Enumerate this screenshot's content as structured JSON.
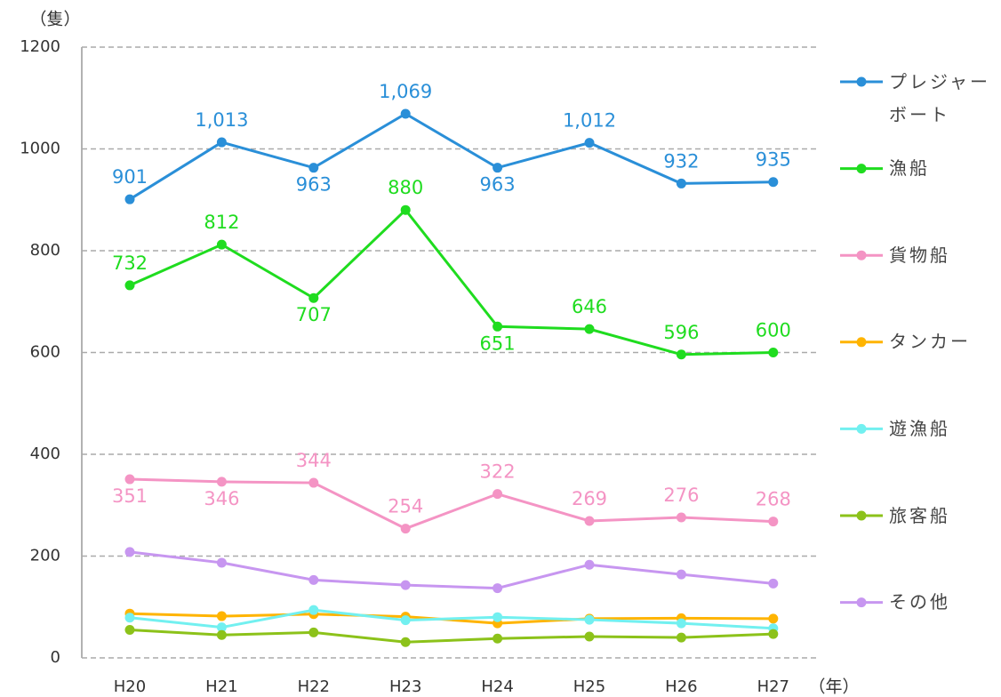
{
  "chart_data": {
    "type": "line",
    "y_unit": "（隻）",
    "x_unit": "（年）",
    "categories": [
      "H20",
      "H21",
      "H22",
      "H23",
      "H24",
      "H25",
      "H26",
      "H27"
    ],
    "ylim": [
      0,
      1200
    ],
    "yticks": [
      0,
      200,
      400,
      600,
      800,
      1000,
      1200
    ],
    "grid": true,
    "legend": "right",
    "series": [
      {
        "name": "プレジャーボート",
        "color": "#2a8fd8",
        "data_labels": true,
        "values": [
          901,
          1013,
          963,
          1069,
          963,
          1012,
          932,
          935
        ],
        "value_labels": [
          "901",
          "1,013",
          "963",
          "1,069",
          "963",
          "1,012",
          "932",
          "935"
        ]
      },
      {
        "name": "漁船",
        "color": "#1fdc1f",
        "data_labels": true,
        "values": [
          732,
          812,
          707,
          880,
          651,
          646,
          596,
          600
        ]
      },
      {
        "name": "貨物船",
        "color": "#f494c4",
        "data_labels": true,
        "values": [
          351,
          346,
          344,
          254,
          322,
          269,
          276,
          268
        ]
      },
      {
        "name": "タンカー",
        "color": "#ffb400",
        "values": [
          87,
          82,
          86,
          81,
          68,
          77,
          78,
          77
        ]
      },
      {
        "name": "遊漁船",
        "color": "#72f0f0",
        "values": [
          79,
          60,
          94,
          74,
          80,
          75,
          68,
          58
        ]
      },
      {
        "name": "旅客船",
        "color": "#8cc21a",
        "values": [
          55,
          45,
          50,
          31,
          38,
          42,
          40,
          47
        ]
      },
      {
        "name": "その他",
        "color": "#c796f0",
        "values": [
          208,
          187,
          153,
          143,
          137,
          183,
          164,
          146
        ]
      }
    ]
  }
}
